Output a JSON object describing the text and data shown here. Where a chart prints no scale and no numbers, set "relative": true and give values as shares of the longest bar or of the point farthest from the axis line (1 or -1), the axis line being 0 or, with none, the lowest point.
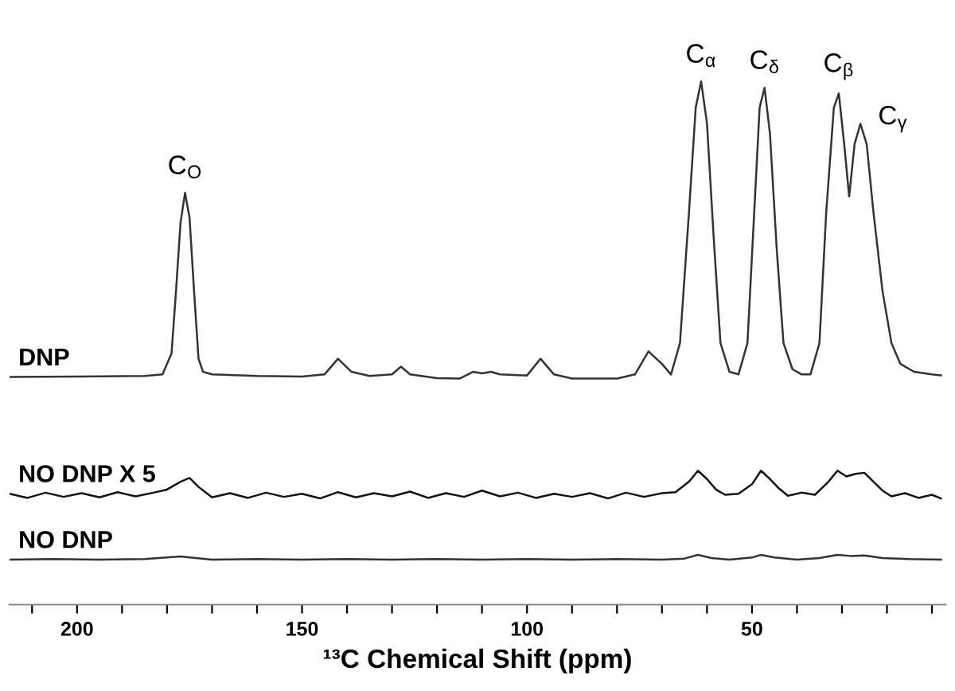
{
  "chart_data": {
    "type": "line",
    "relative": true,
    "xlabel": "¹³C Chemical Shift (ppm)",
    "xlim": [
      215,
      7
    ],
    "xticks": [
      {
        "value": 210,
        "label": null
      },
      200,
      {
        "value": 190,
        "label": null
      },
      {
        "value": 180,
        "label": null
      },
      {
        "value": 170,
        "label": null
      },
      {
        "value": 160,
        "label": null
      },
      150,
      {
        "value": 140,
        "label": null
      },
      {
        "value": 130,
        "label": null
      },
      {
        "value": 120,
        "label": null
      },
      {
        "value": 110,
        "label": null
      },
      100,
      {
        "value": 90,
        "label": null
      },
      {
        "value": 80,
        "label": null
      },
      {
        "value": 70,
        "label": null
      },
      {
        "value": 60,
        "label": null
      },
      50,
      {
        "value": 40,
        "label": null
      },
      {
        "value": 30,
        "label": null
      },
      {
        "value": 20,
        "label": null
      },
      {
        "value": 10,
        "label": null
      }
    ],
    "grid": false,
    "legend": false,
    "marker": "none",
    "line_style": "solid",
    "series": [
      {
        "name": "DNP",
        "color": "#333333",
        "x": [
          215,
          200,
          185,
          181,
          179,
          178,
          177,
          176,
          175,
          174,
          173,
          172,
          170,
          160,
          150,
          145,
          142,
          139,
          135,
          130,
          128,
          126,
          120,
          115,
          112,
          110,
          108,
          106,
          100,
          97,
          94,
          90,
          80,
          76,
          73,
          70,
          68,
          66,
          64,
          62.5,
          61.3,
          60,
          58.5,
          57,
          55,
          53,
          51,
          49.5,
          48.3,
          47.2,
          46,
          44.5,
          43,
          41,
          39,
          37,
          35,
          33.5,
          31.8,
          30.7,
          29.5,
          28.4,
          27.2,
          25.9,
          24.5,
          23,
          21,
          19,
          17,
          14,
          10,
          8
        ],
        "values": [
          0.435,
          0.436,
          0.437,
          0.44,
          0.48,
          0.6,
          0.73,
          0.787,
          0.74,
          0.6,
          0.47,
          0.445,
          0.44,
          0.437,
          0.436,
          0.44,
          0.47,
          0.445,
          0.437,
          0.44,
          0.455,
          0.44,
          0.433,
          0.432,
          0.445,
          0.442,
          0.445,
          0.44,
          0.438,
          0.47,
          0.44,
          0.432,
          0.432,
          0.44,
          0.484,
          0.46,
          0.44,
          0.5,
          0.75,
          0.95,
          1,
          0.92,
          0.7,
          0.5,
          0.445,
          0.44,
          0.5,
          0.75,
          0.95,
          0.988,
          0.9,
          0.68,
          0.5,
          0.45,
          0.44,
          0.44,
          0.5,
          0.75,
          0.95,
          0.977,
          0.88,
          0.78,
          0.88,
          0.919,
          0.88,
          0.75,
          0.6,
          0.5,
          0.46,
          0.445,
          0.44,
          0.438
        ]
      },
      {
        "name": "NO DNP X 5",
        "color": "#111111",
        "x": [
          215,
          211,
          207,
          203,
          199,
          195,
          191,
          187,
          183,
          180,
          177,
          175,
          173,
          170,
          166,
          162,
          158,
          154,
          150,
          146,
          142,
          138,
          134,
          130,
          126,
          122,
          118,
          114,
          110,
          106,
          102,
          98,
          94,
          90,
          86,
          82,
          78,
          74,
          70,
          67,
          64,
          62,
          60,
          58,
          56,
          53,
          50,
          48,
          46,
          44,
          42,
          39,
          36,
          33,
          31,
          29,
          27,
          25,
          23,
          21,
          19,
          16,
          13,
          10,
          8
        ],
        "values": [
          0.212,
          0.204,
          0.214,
          0.206,
          0.213,
          0.205,
          0.215,
          0.207,
          0.214,
          0.22,
          0.235,
          0.242,
          0.225,
          0.205,
          0.213,
          0.204,
          0.214,
          0.206,
          0.212,
          0.203,
          0.215,
          0.205,
          0.213,
          0.207,
          0.216,
          0.204,
          0.213,
          0.206,
          0.218,
          0.207,
          0.214,
          0.204,
          0.212,
          0.206,
          0.213,
          0.203,
          0.214,
          0.206,
          0.213,
          0.215,
          0.235,
          0.256,
          0.24,
          0.22,
          0.21,
          0.212,
          0.23,
          0.256,
          0.24,
          0.222,
          0.208,
          0.214,
          0.21,
          0.235,
          0.256,
          0.245,
          0.25,
          0.252,
          0.235,
          0.218,
          0.207,
          0.213,
          0.204,
          0.21,
          0.203
        ]
      },
      {
        "name": "NO DNP",
        "color": "#333333",
        "x": [
          215,
          205,
          195,
          185,
          177,
          170,
          160,
          150,
          140,
          130,
          120,
          110,
          100,
          90,
          80,
          70,
          65,
          62,
          59,
          55,
          50,
          48,
          45,
          40,
          35,
          31,
          28,
          25,
          21,
          15,
          8
        ],
        "values": [
          0.086,
          0.087,
          0.086,
          0.087,
          0.092,
          0.086,
          0.087,
          0.086,
          0.087,
          0.086,
          0.087,
          0.086,
          0.087,
          0.086,
          0.087,
          0.086,
          0.088,
          0.095,
          0.089,
          0.086,
          0.09,
          0.095,
          0.09,
          0.086,
          0.089,
          0.095,
          0.093,
          0.094,
          0.089,
          0.087,
          0.086
        ]
      }
    ],
    "annotations": [
      {
        "text": "C$_{O}$",
        "x": 176,
        "y": 0.787
      },
      {
        "text": "C$_{α}$",
        "x": 61.3,
        "y": 1
      },
      {
        "text": "C$_{δ}$",
        "x": 47.2,
        "y": 0.988
      },
      {
        "text": "C$_{β}$",
        "x": 30.7,
        "y": 0.977
      },
      {
        "text": "C$_{γ}$",
        "x": 25.9,
        "y": 0.919
      }
    ]
  }
}
